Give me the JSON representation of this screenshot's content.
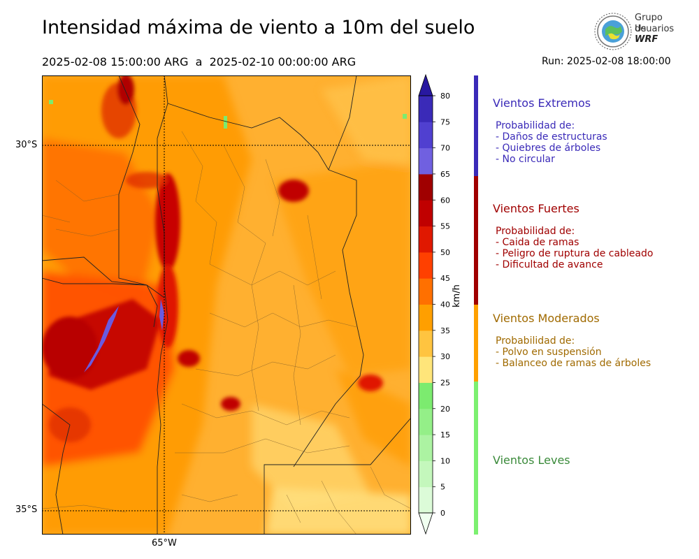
{
  "title": "Intensidad máxima de viento a 10m del suelo",
  "period": "2025-02-08 15:00:00 ARG  a  2025-02-10 00:00:00 ARG",
  "run": "Run: 2025-02-08 18:00:00",
  "logo": {
    "line1": "Grupo de",
    "line2": "Usuarios",
    "line3": "WRF"
  },
  "map": {
    "lat_labels": [
      "30°S",
      "35°S"
    ],
    "lon_labels": [
      "65°W"
    ]
  },
  "colorbar": {
    "unit_label": "km/h",
    "ticks": [
      "0",
      "5",
      "10",
      "15",
      "20",
      "25",
      "30",
      "35",
      "40",
      "45",
      "50",
      "55",
      "60",
      "65",
      "70",
      "75",
      "80"
    ],
    "colors": [
      "#f0fff0",
      "#dcfbd8",
      "#c4f7bc",
      "#acf3a2",
      "#94ef88",
      "#7ceb6f",
      "#ffe57a",
      "#ffc440",
      "#ff9f00",
      "#ff7000",
      "#ff4000",
      "#e01800",
      "#c00000",
      "#a00000",
      "#7060e0",
      "#5040d0",
      "#3a2ab8",
      "#2818a0"
    ]
  },
  "categories": [
    {
      "title": "Vientos Extremos",
      "color": "#3a2ab8",
      "lines": [
        "Probabilidad de:",
        "- Daños de estructuras",
        "- Quiebres de árboles",
        "- No circular"
      ]
    },
    {
      "title": "Vientos Fuertes",
      "color": "#a00000",
      "lines": [
        "Probabilidad de:",
        "- Caida de ramas",
        "- Peligro de ruptura de cableado",
        "- Dificultad de avance"
      ]
    },
    {
      "title": "Vientos Moderados",
      "color": "#a06a00",
      "lines": [
        "Probabilidad de:",
        "- Polvo en suspensión",
        "- Balanceo de ramas de árboles"
      ]
    },
    {
      "title": "Vientos Leves",
      "color": "#3a8a3a",
      "lines": []
    }
  ],
  "category_bar_colors": [
    "#3a2ab8",
    "#a00000",
    "#ffa000",
    "#7cf070"
  ]
}
